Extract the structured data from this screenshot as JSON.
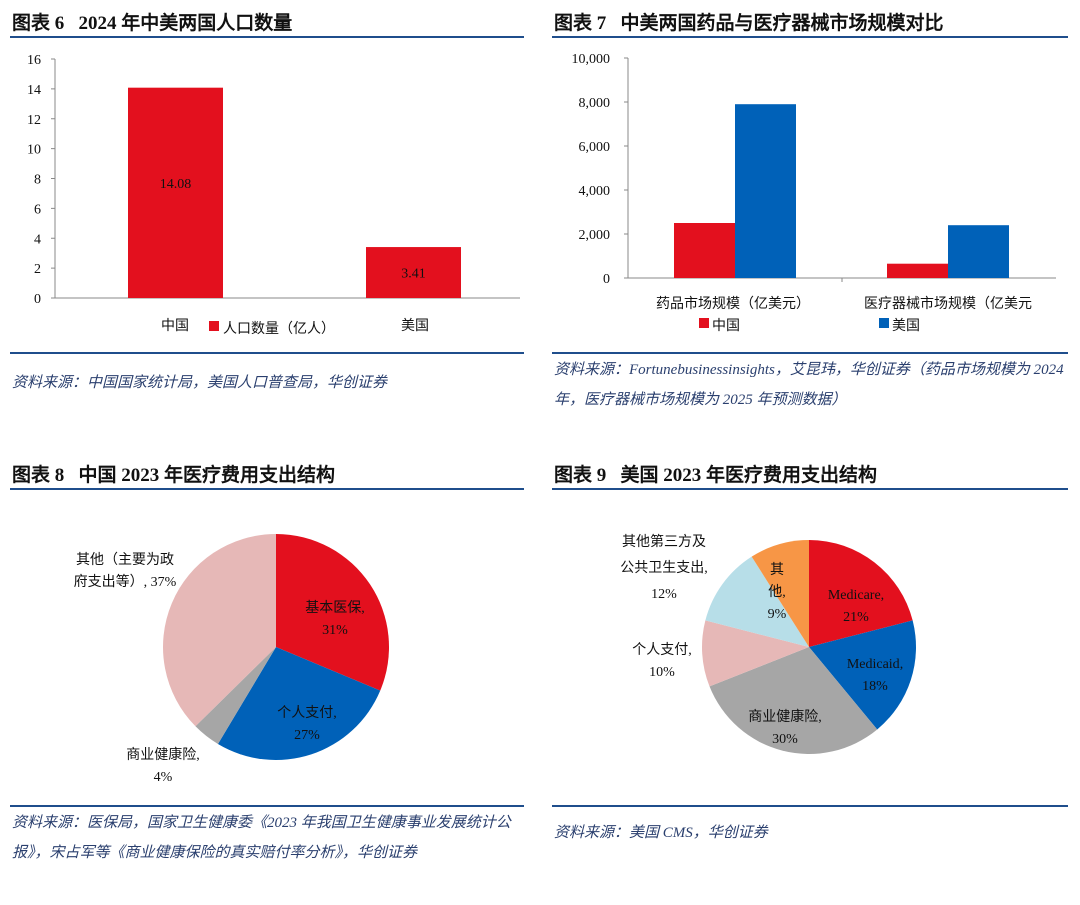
{
  "fig6": {
    "title": "图表 6   2024 年中美两国人口数量",
    "source": "资料来源：中国国家统计局，美国人口普查局，华创证券"
  },
  "fig7": {
    "title": "图表 7   中美两国药品与医疗器械市场规模对比",
    "source": "资料来源：Fortunebusinessinsights，艾昆玮，华创证券（药品市场规模为 2024 年，医疗器械市场规模为 2025 年预测数据）"
  },
  "fig8": {
    "title": "图表 8   中国 2023 年医疗费用支出结构",
    "source": "资料来源：医保局，国家卫生健康委《2023 年我国卫生健康事业发展统计公报》，宋占军等《商业健康保险的真实赔付率分析》，华创证券"
  },
  "fig9": {
    "title": "图表 9   美国 2023 年医疗费用支出结构",
    "source": "资料来源：美国 CMS，华创证券"
  },
  "chart_data": [
    {
      "type": "bar",
      "categories": [
        "中国",
        "美国"
      ],
      "series": [
        {
          "name": "人口数量（亿人）",
          "values": [
            14.08,
            3.41
          ],
          "color": "#E3101E"
        }
      ],
      "data_labels": [
        "14.08",
        "3.41"
      ],
      "ylim": [
        0,
        16
      ],
      "yticks": [
        0,
        2,
        4,
        6,
        8,
        10,
        12,
        14,
        16
      ],
      "ytick_labels": [
        "0",
        "2",
        "4",
        "6",
        "8",
        "10",
        "12",
        "14",
        "16"
      ],
      "legend": "bottom",
      "grid": false
    },
    {
      "type": "bar",
      "categories": [
        "药品市场规模（亿美元）",
        "医疗器械市场规模（亿美元"
      ],
      "series": [
        {
          "name": "中国",
          "values": [
            2500,
            650
          ],
          "color": "#E3101E"
        },
        {
          "name": "美国",
          "values": [
            7900,
            2400
          ],
          "color": "#0061B8"
        }
      ],
      "ylim": [
        0,
        10000
      ],
      "yticks": [
        0,
        2000,
        4000,
        6000,
        8000,
        10000
      ],
      "ytick_labels": [
        "0",
        "2,000",
        "4,000",
        "6,000",
        "8,000",
        "10,000"
      ],
      "legend": "bottom",
      "grid": false
    },
    {
      "type": "pie",
      "slices": [
        {
          "name": "基本医保",
          "value": 31,
          "label": "31%",
          "color": "#E3101E"
        },
        {
          "name": "个人支付",
          "value": 27,
          "label": "27%",
          "color": "#0061B8"
        },
        {
          "name": "商业健康险",
          "value": 4,
          "label": "4%",
          "color": "#A6A6A6"
        },
        {
          "name": "其他（主要为政府支出等）",
          "value": 37,
          "label": "37%",
          "color": "#E6B8B7"
        }
      ]
    },
    {
      "type": "pie",
      "slices": [
        {
          "name": "Medicare",
          "value": 21,
          "label": "21%",
          "color": "#E3101E"
        },
        {
          "name": "Medicaid",
          "value": 18,
          "label": "18%",
          "color": "#0061B8"
        },
        {
          "name": "商业健康险",
          "value": 30,
          "label": "30%",
          "color": "#A6A6A6"
        },
        {
          "name": "个人支付",
          "value": 10,
          "label": "10%",
          "color": "#E6B8B7"
        },
        {
          "name": "其他第三方及公共卫生支出",
          "value": 12,
          "label": "12%",
          "color": "#B7DEE8"
        },
        {
          "name": "其他",
          "value": 9,
          "label": "9%",
          "color": "#F79646"
        }
      ]
    }
  ]
}
